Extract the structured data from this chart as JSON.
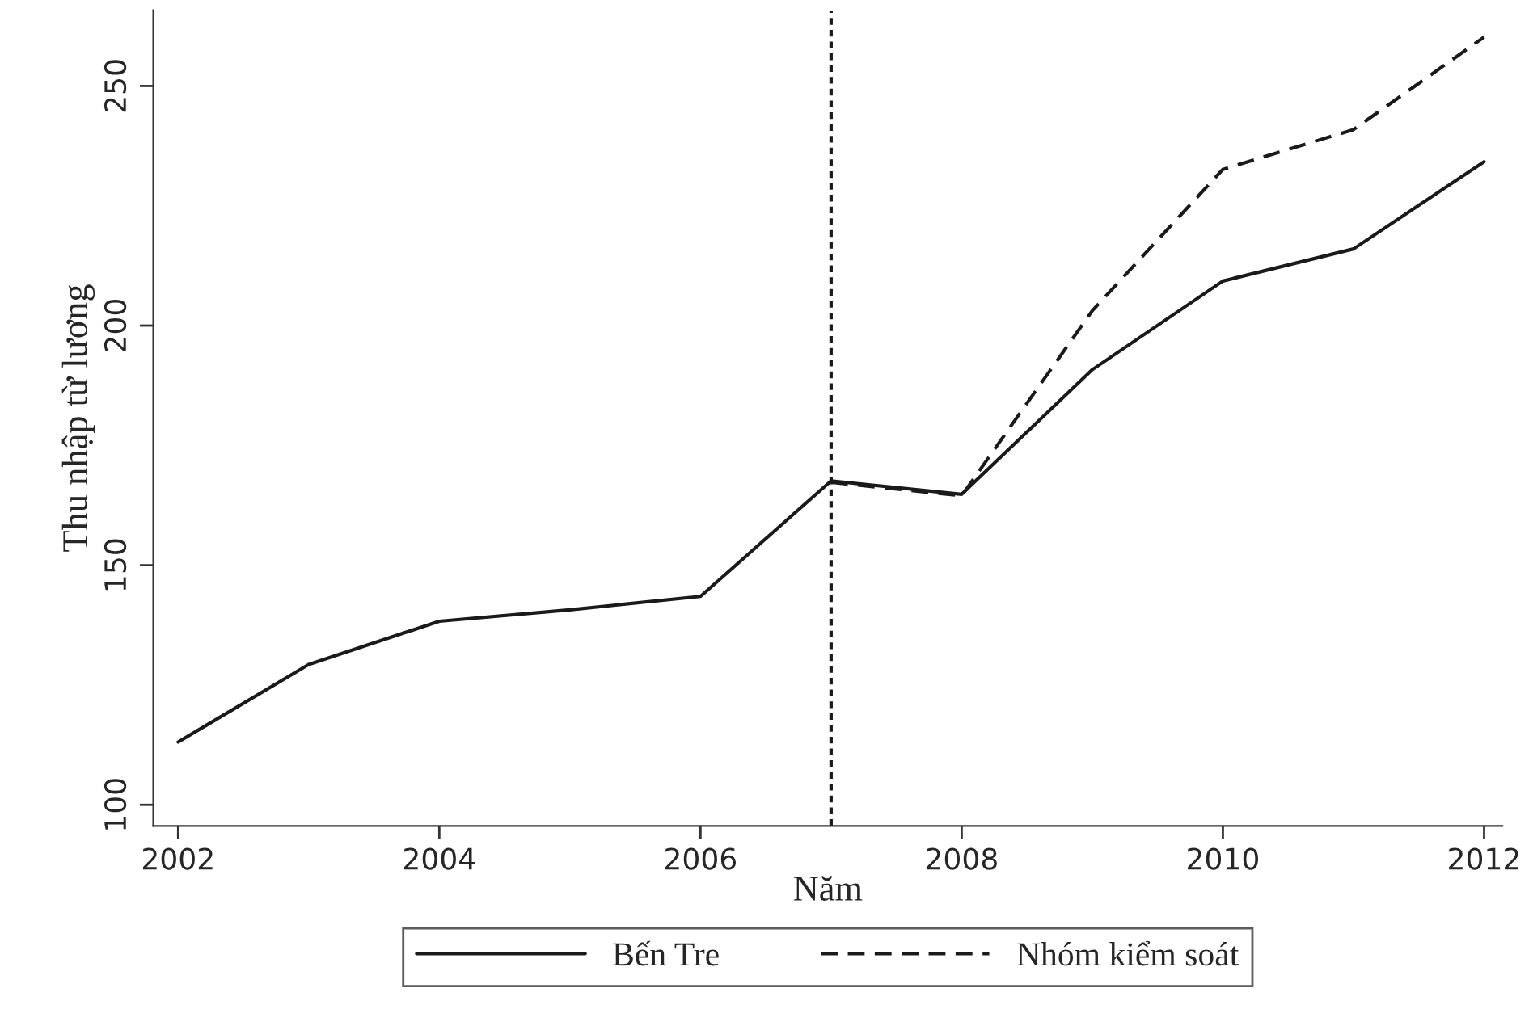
{
  "chart_data": {
    "type": "line",
    "xlabel": "Năm",
    "ylabel": "Thu nhập từ lương",
    "x": [
      2002,
      2003,
      2004,
      2005,
      2006,
      2007,
      2008,
      2009,
      2010,
      2011,
      2012
    ],
    "series": [
      {
        "name": "Bến Tre",
        "color": "#1a1a1a",
        "line_style": "solid",
        "values": [
          113.1,
          129.3,
          138.3,
          140.7,
          143.5,
          167.6,
          164.8,
          190.8,
          209.3,
          216.0,
          234.2
        ]
      },
      {
        "name": "Nhóm kiểm soát",
        "color": "#1a1a1a",
        "line_style": "dashed",
        "x": [
          2007,
          2008,
          2009,
          2010,
          2011,
          2012
        ],
        "values": [
          167.3,
          164.5,
          203.1,
          232.6,
          240.9,
          260.2
        ]
      }
    ],
    "xlim": [
      2001.81,
      2012.14
    ],
    "ylim": [
      95.6,
      265.8
    ],
    "xticks": [
      2002,
      2004,
      2006,
      2008,
      2010,
      2012
    ],
    "yticks": [
      100,
      150,
      200,
      250
    ],
    "ref_lines": [
      {
        "axis": "x",
        "value": 2007,
        "color": "#1a1a1a",
        "line_style": "dotted"
      }
    ],
    "grid": false,
    "legend": "bottom",
    "marker": "none"
  }
}
